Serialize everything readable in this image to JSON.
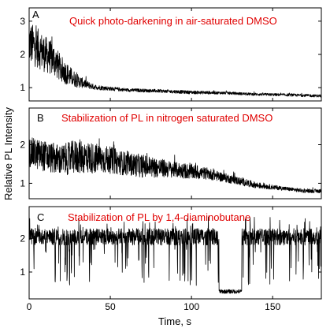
{
  "chart_data": {
    "type": "line",
    "xlabel": "Time, s",
    "ylabel": "Relative PL Intensity",
    "xlim": [
      0,
      180
    ],
    "xticks": [
      0,
      50,
      100,
      150
    ],
    "annotation_color": "#e00000",
    "panels": [
      {
        "letter": "A",
        "annotation": "Quick photo-darkening  in air-saturated DMSO",
        "ylim": [
          0.6,
          3.4
        ],
        "yticks": [
          1,
          2,
          3
        ],
        "trace": {
          "kind": "decay",
          "x": [
            0,
            5,
            10,
            15,
            20,
            25,
            30,
            35,
            40,
            50,
            60,
            80,
            100,
            120,
            140,
            160,
            180
          ],
          "baseline": [
            2.35,
            2.2,
            2.0,
            1.85,
            1.55,
            1.35,
            1.2,
            1.1,
            1.02,
            0.97,
            0.93,
            0.9,
            0.86,
            0.84,
            0.8,
            0.78,
            0.75
          ],
          "spread": [
            0.65,
            0.6,
            0.55,
            0.5,
            0.4,
            0.3,
            0.2,
            0.12,
            0.08,
            0.06,
            0.05,
            0.05,
            0.05,
            0.04,
            0.04,
            0.04,
            0.04
          ]
        }
      },
      {
        "letter": "B",
        "annotation": "Stabilization of PL in nitrogen saturated DMSO",
        "ylim": [
          0.6,
          2.95
        ],
        "yticks": [
          1,
          2
        ],
        "trace": {
          "kind": "decay",
          "x": [
            0,
            10,
            20,
            30,
            40,
            50,
            60,
            70,
            80,
            90,
            100,
            110,
            120,
            130,
            140,
            150,
            160,
            170,
            180
          ],
          "baseline": [
            1.8,
            1.7,
            1.6,
            1.7,
            1.65,
            1.6,
            1.5,
            1.45,
            1.4,
            1.35,
            1.3,
            1.25,
            1.15,
            1.05,
            0.95,
            0.9,
            0.85,
            0.8,
            0.8
          ],
          "spread": [
            0.4,
            0.4,
            0.4,
            0.45,
            0.4,
            0.35,
            0.3,
            0.3,
            0.25,
            0.2,
            0.2,
            0.15,
            0.12,
            0.1,
            0.08,
            0.06,
            0.05,
            0.05,
            0.05
          ]
        }
      },
      {
        "letter": "C",
        "annotation": "Stabilization of PL by 1,4-diaminobutane",
        "ylim": [
          0.2,
          2.95
        ],
        "yticks": [
          1,
          2
        ],
        "trace": {
          "kind": "blinking",
          "high": 2.05,
          "high_spread": 0.25,
          "low": 0.6,
          "off_interval": [
            117,
            131
          ],
          "off_level": 0.42
        }
      }
    ]
  }
}
